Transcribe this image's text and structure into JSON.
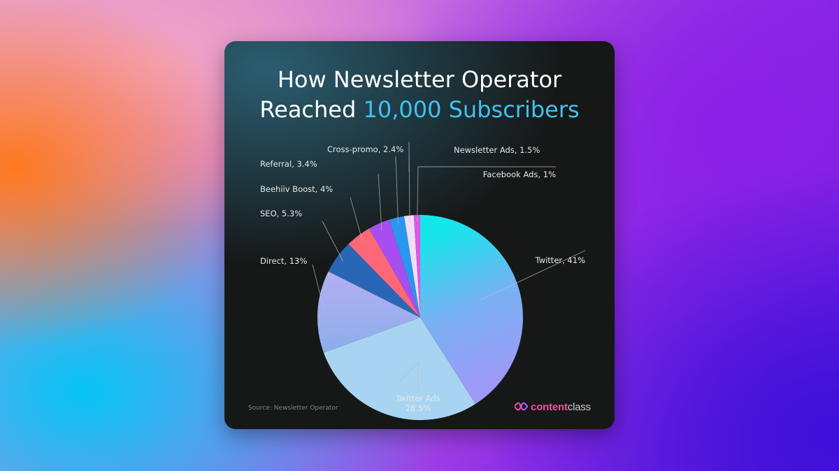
{
  "card": {
    "title_line1": "How Newsletter Operator",
    "title_line2_prefix": "Reached ",
    "title_line2_highlight": "10,000 Subscribers",
    "source": "Source: Newsletter Operator",
    "brand_bold": "content",
    "brand_regular": "class"
  },
  "colors": {
    "accent": "#3fc2ef",
    "card_bg": "#161818",
    "brand_pink": "#ec4f9b"
  },
  "chart_data": {
    "type": "pie",
    "categories": [
      "Twitter",
      "Twitter Ads",
      "Direct",
      "SEO",
      "Beehiiv Boost",
      "Referral",
      "Cross-promo",
      "Newsletter Ads",
      "Facebook Ads"
    ],
    "values": [
      41,
      28.5,
      13,
      5.3,
      4,
      3.4,
      2.4,
      1.5,
      1
    ],
    "value_labels": [
      "Twitter, 41%",
      "Twitter Ads\n28.5%",
      "Direct, 13%",
      "SEO, 5.3%",
      "Beehiiv Boost, 4%",
      "Referral, 3.4%",
      "Cross-promo, 2.4%",
      "Newsletter Ads, 1.5%",
      "Facebook Ads, 1%"
    ],
    "colors": [
      "gradient-cyan-lavender",
      "#a8d4f2",
      "gradient-lavender-blue",
      "#2a66b6",
      "#fd6878",
      "#a84ef0",
      "#2a96ee",
      "#f2ddf6",
      "#db58e8"
    ],
    "start": "12 o'clock",
    "direction": "clockwise"
  }
}
